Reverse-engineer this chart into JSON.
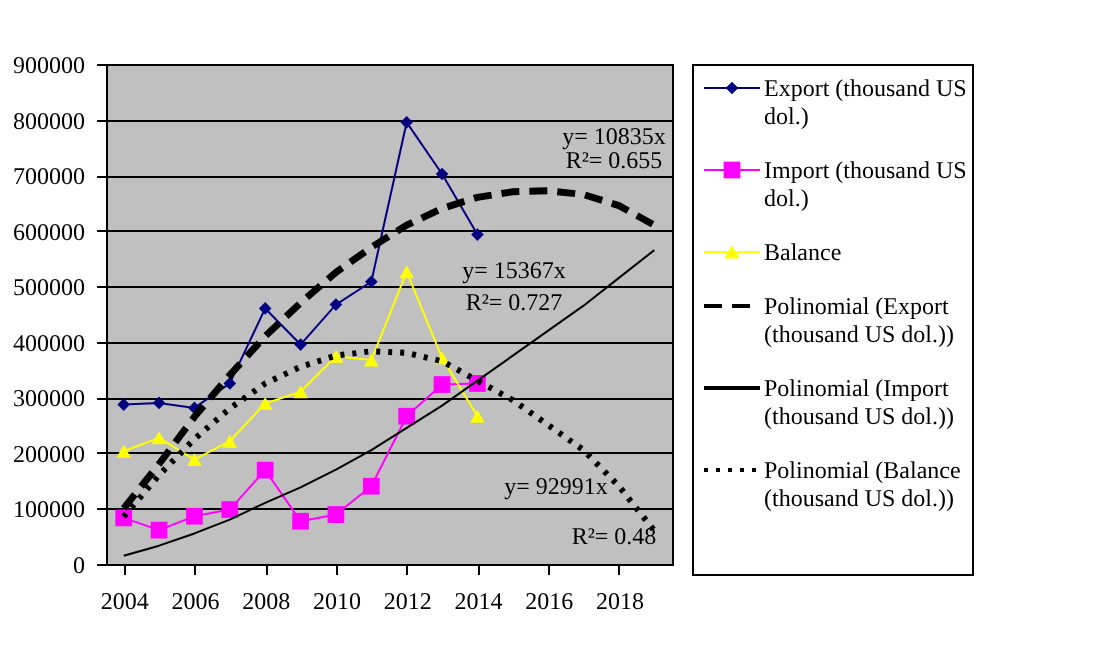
{
  "chart_data": {
    "type": "line",
    "x": [
      2004,
      2005,
      2006,
      2007,
      2008,
      2009,
      2010,
      2011,
      2012,
      2013,
      2014
    ],
    "xlim": [
      2003.5,
      2019.5
    ],
    "xticks": [
      2004,
      2006,
      2008,
      2010,
      2012,
      2014,
      2016,
      2018
    ],
    "ylim": [
      0,
      900000
    ],
    "yticks": [
      0,
      100000,
      200000,
      300000,
      400000,
      500000,
      600000,
      700000,
      800000,
      900000
    ],
    "grid": "y",
    "legend": "right",
    "series": [
      {
        "name": "Export (thousand US dol.)",
        "color": "#000080",
        "marker": "diamond",
        "line_style": "solid",
        "values": [
          287000,
          290000,
          281000,
          325000,
          460000,
          395000,
          467000,
          508000,
          795000,
          702000,
          593000
        ]
      },
      {
        "name": "Import (thousand US dol.)",
        "color": "#ff00ff",
        "marker": "square",
        "line_style": "solid",
        "values": [
          83000,
          61000,
          86000,
          98000,
          169000,
          77000,
          89000,
          140000,
          266000,
          323000,
          325000
        ]
      },
      {
        "name": "Balance",
        "color": "#ffff00",
        "marker": "triangle",
        "line_style": "solid",
        "values": [
          203000,
          227000,
          188000,
          221000,
          289000,
          310000,
          374000,
          367000,
          526000,
          371000,
          266000
        ]
      },
      {
        "name": "Polinomial (Export (thousand US dol.))",
        "color": "#000000",
        "marker": "none",
        "line_style": "dashed",
        "x": [
          2004,
          2005,
          2006,
          2007,
          2008,
          2009,
          2010,
          2011,
          2012,
          2013,
          2014,
          2015,
          2016,
          2017,
          2018,
          2019
        ],
        "values": [
          100000,
          180000,
          265000,
          340000,
          410000,
          470000,
          525000,
          570000,
          610000,
          640000,
          660000,
          670000,
          672000,
          665000,
          645000,
          610000
        ]
      },
      {
        "name": "Polinomial (Import (thousand US dol.))",
        "color": "#000000",
        "marker": "none",
        "line_style": "solid",
        "x": [
          2004,
          2005,
          2006,
          2007,
          2008,
          2009,
          2010,
          2011,
          2012,
          2013,
          2014,
          2015,
          2016,
          2017,
          2018,
          2019
        ],
        "values": [
          15000,
          33000,
          55000,
          80000,
          110000,
          138000,
          170000,
          205000,
          245000,
          285000,
          330000,
          375000,
          420000,
          465000,
          515000,
          565000
        ]
      },
      {
        "name": "Polinomial (Balance (thousand US dol.))",
        "color": "#000000",
        "marker": "none",
        "line_style": "dotted",
        "x": [
          2004,
          2005,
          2006,
          2007,
          2008,
          2009,
          2010,
          2011,
          2012,
          2013,
          2014,
          2015,
          2016,
          2017,
          2018,
          2019
        ],
        "values": [
          85000,
          160000,
          225000,
          280000,
          325000,
          355000,
          375000,
          383000,
          380000,
          365000,
          330000,
          295000,
          250000,
          205000,
          140000,
          60000
        ]
      }
    ],
    "annotations": [
      "y= 10835x",
      "R²= 0.655",
      "y= 15367x",
      "R²= 0.727",
      "y= 92991x",
      "R²= 0.48"
    ]
  }
}
